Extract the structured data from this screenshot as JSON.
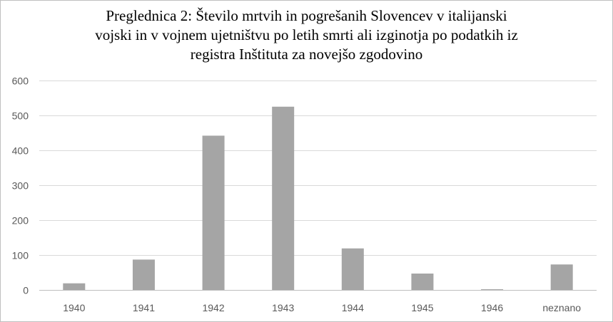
{
  "chart_data": {
    "type": "bar",
    "title_lines": [
      "Preglednica 2: Število mrtvih in pogrešanih Slovencev v italijanski",
      "vojski in v vojnem ujetništvu po letih smrti ali izginotja po podatkih iz",
      "registra Inštituta za novejšo zgodovino"
    ],
    "categories": [
      "1940",
      "1941",
      "1942",
      "1943",
      "1944",
      "1945",
      "1946",
      "neznano"
    ],
    "values": [
      20,
      88,
      443,
      526,
      120,
      48,
      3,
      74
    ],
    "ylim": [
      0,
      600
    ],
    "yticks": [
      0,
      100,
      200,
      300,
      400,
      500,
      600
    ],
    "grid": true,
    "legend": "none",
    "bar_color": "#a5a5a5",
    "grid_color": "#d9d9d9",
    "axis_color": "#bfbfbf"
  }
}
